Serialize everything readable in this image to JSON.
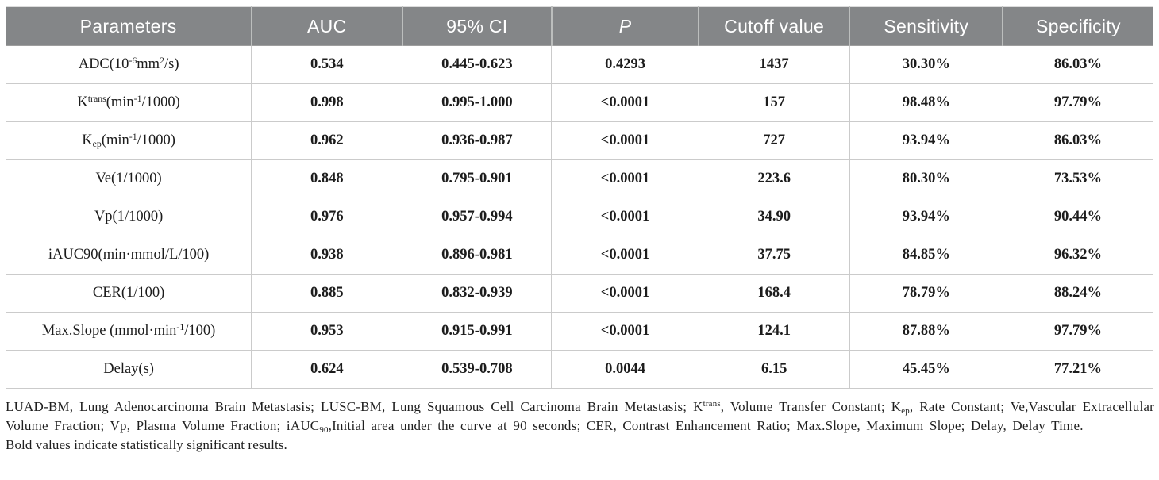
{
  "table": {
    "header": {
      "columns": [
        "Parameters",
        "AUC",
        "95% CI",
        "P",
        "Cutoff value",
        "Sensitivity",
        "Specificity"
      ],
      "background_color": "#848688",
      "text_color": "#ffffff"
    },
    "rows": [
      {
        "parameter": [
          {
            "t": "ADC(10"
          },
          {
            "t": "-6",
            "s": "sup"
          },
          {
            "t": "mm"
          },
          {
            "t": "2",
            "s": "sup"
          },
          {
            "t": "/s)"
          }
        ],
        "auc": "0.534",
        "ci_95": "0.445-0.623",
        "p": "0.4293",
        "cutoff_value": "1437",
        "sensitivity": "30.30%",
        "specificity": "86.03%"
      },
      {
        "parameter": [
          {
            "t": "K"
          },
          {
            "t": "trans",
            "s": "sup"
          },
          {
            "t": "(min"
          },
          {
            "t": "-1",
            "s": "sup"
          },
          {
            "t": "/1000)"
          }
        ],
        "auc": "0.998",
        "ci_95": "0.995-1.000",
        "p": "<0.0001",
        "cutoff_value": "157",
        "sensitivity": "98.48%",
        "specificity": "97.79%"
      },
      {
        "parameter": [
          {
            "t": "K"
          },
          {
            "t": "ep",
            "s": "sub"
          },
          {
            "t": "(min"
          },
          {
            "t": "-1",
            "s": "sup"
          },
          {
            "t": "/1000)"
          }
        ],
        "auc": "0.962",
        "ci_95": "0.936-0.987",
        "p": "<0.0001",
        "cutoff_value": "727",
        "sensitivity": "93.94%",
        "specificity": "86.03%"
      },
      {
        "parameter": [
          {
            "t": "Ve(1/1000)"
          }
        ],
        "auc": "0.848",
        "ci_95": "0.795-0.901",
        "p": "<0.0001",
        "cutoff_value": "223.6",
        "sensitivity": "80.30%",
        "specificity": "73.53%"
      },
      {
        "parameter": [
          {
            "t": "Vp(1/1000)"
          }
        ],
        "auc": "0.976",
        "ci_95": "0.957-0.994",
        "p": "<0.0001",
        "cutoff_value": "34.90",
        "sensitivity": "93.94%",
        "specificity": "90.44%"
      },
      {
        "parameter": [
          {
            "t": "iAUC90(min·mmol/L/100)"
          }
        ],
        "auc": "0.938",
        "ci_95": "0.896-0.981",
        "p": "<0.0001",
        "cutoff_value": "37.75",
        "sensitivity": "84.85%",
        "specificity": "96.32%"
      },
      {
        "parameter": [
          {
            "t": "CER(1/100)"
          }
        ],
        "auc": "0.885",
        "ci_95": "0.832-0.939",
        "p": "<0.0001",
        "cutoff_value": "168.4",
        "sensitivity": "78.79%",
        "specificity": "88.24%"
      },
      {
        "parameter": [
          {
            "t": "Max.Slope (mmol·min"
          },
          {
            "t": "-1",
            "s": "sup"
          },
          {
            "t": "/100)"
          }
        ],
        "auc": "0.953",
        "ci_95": "0.915-0.991",
        "p": "<0.0001",
        "cutoff_value": "124.1",
        "sensitivity": "87.88%",
        "specificity": "97.79%"
      },
      {
        "parameter": [
          {
            "t": "Delay(s)"
          }
        ],
        "auc": "0.624",
        "ci_95": "0.539-0.708",
        "p": "0.0044",
        "cutoff_value": "6.15",
        "sensitivity": "45.45%",
        "specificity": "77.21%"
      }
    ]
  },
  "footnotes": [
    {
      "parts": [
        {
          "t": "LUAD-BM, Lung Adenocarcinoma Brain Metastasis; LUSC-BM, Lung Squamous Cell Carcinoma Brain Metastasis; K"
        },
        {
          "t": "trans",
          "s": "sup"
        },
        {
          "t": ", Volume Transfer Constant; K"
        },
        {
          "t": "ep",
          "s": "sub"
        },
        {
          "t": ", Rate Constant; Ve,Vascular Extracellular Volume Fraction; Vp, Plasma Volume Fraction; iAUC"
        },
        {
          "t": "90",
          "s": "sub"
        },
        {
          "t": ",Initial area under the curve at 90 seconds; CER, Contrast Enhancement Ratio; Max.Slope, Maximum Slope; Delay, Delay Time."
        }
      ]
    },
    {
      "parts": [
        {
          "t": "Bold values indicate statistically significant results."
        }
      ]
    }
  ]
}
